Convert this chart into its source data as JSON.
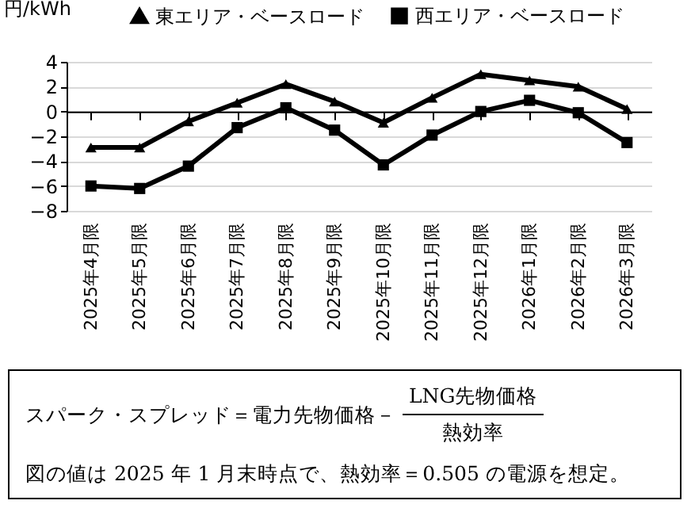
{
  "chart_data": {
    "type": "line",
    "ylabel": "円/kWh",
    "categories": [
      "2025年4月限",
      "2025年5月限",
      "2025年6月限",
      "2025年7月限",
      "2025年8月限",
      "2025年9月限",
      "2025年10月限",
      "2025年11月限",
      "2025年12月限",
      "2026年1月限",
      "2026年2月限",
      "2026年3月限"
    ],
    "series": [
      {
        "name": "東エリア・ベースロード",
        "color": "#000000",
        "marker": "triangle",
        "values": [
          -2.9,
          -2.9,
          -0.8,
          0.7,
          2.2,
          0.8,
          -0.9,
          1.1,
          3.0,
          2.5,
          2.0,
          0.2
        ]
      },
      {
        "name": "西エリア・ベースロード",
        "color": "#000000",
        "marker": "square",
        "values": [
          -6.0,
          -6.2,
          -4.4,
          -1.3,
          0.3,
          -1.5,
          -4.3,
          -1.9,
          0.0,
          0.9,
          -0.1,
          -2.5
        ]
      }
    ],
    "ylim": [
      -8,
      4
    ],
    "yticks": [
      -8,
      -6,
      -4,
      -2,
      0,
      2,
      4
    ],
    "grid": "y",
    "legend": "top",
    "annotations": [
      "スパーク・スプレッド＝電力先物価格－",
      "LNG先物価格",
      "熱効率",
      "図の値は 2025 年 1 月末時点で、熱効率＝0.505 の電源を想定。"
    ]
  }
}
